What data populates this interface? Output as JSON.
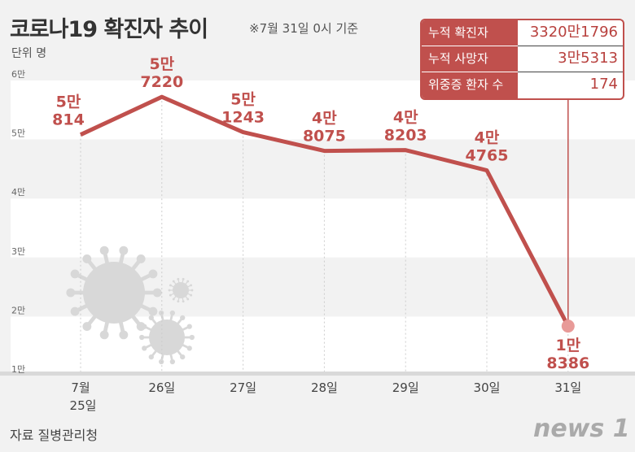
{
  "header": {
    "title": "코로나19 확진자 추이",
    "note": "※7월 31일 0시 기준",
    "unit": "단위 명"
  },
  "summary": [
    {
      "label": "누적 확진자",
      "value": "3320만1796"
    },
    {
      "label": "누적 사망자",
      "value": "3만5313"
    },
    {
      "label": "위중증 환자 수",
      "value": "174"
    }
  ],
  "footer": {
    "source": "자료 질병관리청",
    "logo": "news1"
  },
  "colors": {
    "line": "#c0504d",
    "band": "#f2f2f2"
  },
  "chart_data": {
    "type": "line",
    "categories": [
      "7월 25일",
      "26일",
      "27일",
      "28일",
      "29일",
      "30일",
      "31일"
    ],
    "values": [
      50814,
      57220,
      51243,
      48075,
      48203,
      44765,
      18386
    ],
    "data_labels": [
      [
        "5만",
        "814"
      ],
      [
        "5만",
        "7220"
      ],
      [
        "5만",
        "1243"
      ],
      [
        "4만",
        "8075"
      ],
      [
        "4만",
        "8203"
      ],
      [
        "4만",
        "4765"
      ],
      [
        "1만",
        "8386"
      ]
    ],
    "yticks": [
      {
        "v": 10000,
        "label": "1만"
      },
      {
        "v": 20000,
        "label": "2만"
      },
      {
        "v": 30000,
        "label": "3만"
      },
      {
        "v": 40000,
        "label": "4만"
      },
      {
        "v": 50000,
        "label": "5만"
      },
      {
        "v": 60000,
        "label": "6만"
      }
    ],
    "ylim": [
      10000,
      60000
    ],
    "grid": "bands"
  }
}
